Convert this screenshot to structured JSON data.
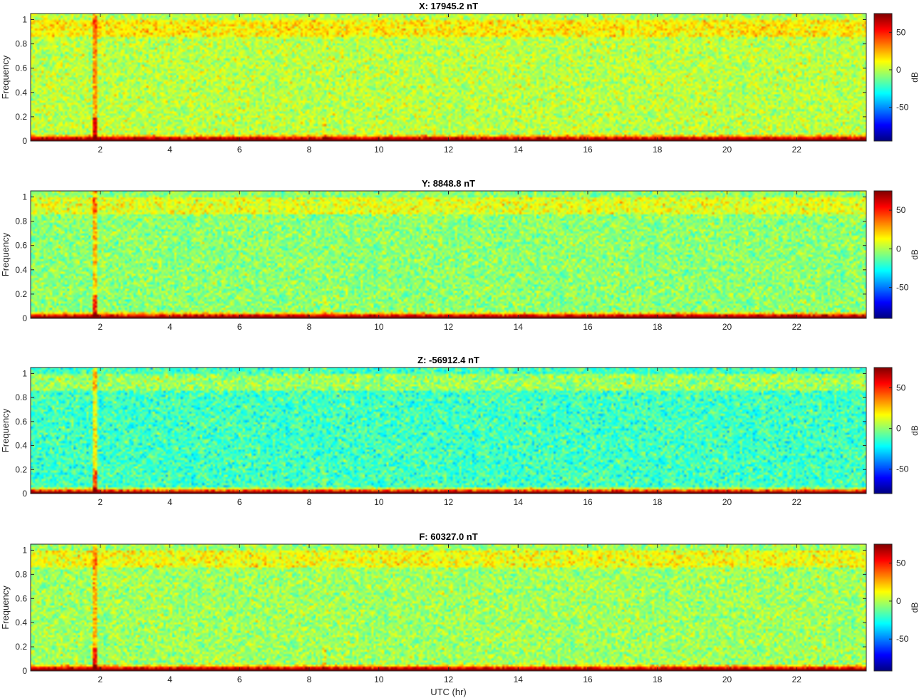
{
  "chart_data": [
    {
      "type": "heatmap",
      "title": "X: 17945.2 nT",
      "xlabel": "",
      "ylabel": "Frequency",
      "colorbar_label": "dB",
      "colormap": "jet",
      "xlim": [
        0,
        24
      ],
      "ylim": [
        0,
        1.05
      ],
      "clim": [
        -95,
        75
      ],
      "x_ticks": [
        2,
        4,
        6,
        8,
        10,
        12,
        14,
        16,
        18,
        20,
        22
      ],
      "y_ticks": [
        0,
        0.2,
        0.4,
        0.6,
        0.8,
        1
      ],
      "colorbar_ticks": [
        50,
        0,
        -50
      ],
      "background_level_db": 0,
      "spike_x": 1.85
    },
    {
      "type": "heatmap",
      "title": "Y: 8848.8 nT",
      "xlabel": "",
      "ylabel": "Frequency",
      "colorbar_label": "dB",
      "colormap": "jet",
      "xlim": [
        0,
        24
      ],
      "ylim": [
        0,
        1.05
      ],
      "clim": [
        -90,
        75
      ],
      "x_ticks": [
        2,
        4,
        6,
        8,
        10,
        12,
        14,
        16,
        18,
        20,
        22
      ],
      "y_ticks": [
        0,
        0.2,
        0.4,
        0.6,
        0.8,
        1
      ],
      "colorbar_ticks": [
        50,
        0,
        -50
      ],
      "background_level_db": -5,
      "spike_x": 1.85
    },
    {
      "type": "heatmap",
      "title": "Z: -56912.4 nT",
      "xlabel": "",
      "ylabel": "Frequency",
      "colorbar_label": "dB",
      "colormap": "jet",
      "xlim": [
        0,
        24
      ],
      "ylim": [
        0,
        1.05
      ],
      "clim": [
        -80,
        75
      ],
      "x_ticks": [
        2,
        4,
        6,
        8,
        10,
        12,
        14,
        16,
        18,
        20,
        22
      ],
      "y_ticks": [
        0,
        0.2,
        0.4,
        0.6,
        0.8,
        1
      ],
      "colorbar_ticks": [
        50,
        0,
        -50
      ],
      "background_level_db": -12,
      "spike_x": 1.85
    },
    {
      "type": "heatmap",
      "title": "F: 60327.0 nT",
      "xlabel": "UTC (hr)",
      "ylabel": "Frequency",
      "colorbar_label": "dB",
      "colormap": "jet",
      "xlim": [
        0,
        24
      ],
      "ylim": [
        0,
        1.05
      ],
      "clim": [
        -92,
        75
      ],
      "x_ticks": [
        2,
        4,
        6,
        8,
        10,
        12,
        14,
        16,
        18,
        20,
        22
      ],
      "y_ticks": [
        0,
        0.2,
        0.4,
        0.6,
        0.8,
        1
      ],
      "colorbar_ticks": [
        50,
        0,
        -50
      ],
      "background_level_db": -3,
      "spike_x": 1.85
    }
  ]
}
